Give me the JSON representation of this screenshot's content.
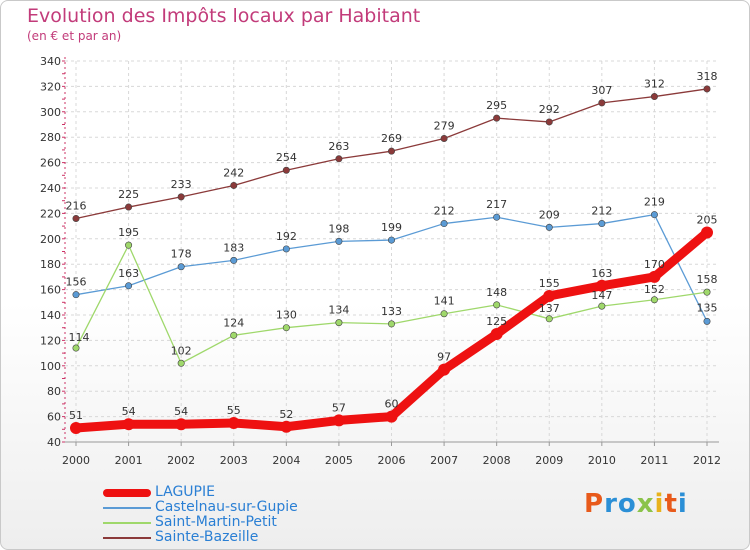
{
  "header": {
    "title": "Evolution des Impôts locaux par Habitant",
    "subtitle": "(en € et par an)"
  },
  "logo": {
    "text": "Proxiti",
    "colors": [
      "#e85a1b",
      "#2b8fd6",
      "#2b8fd6",
      "#8bc34a",
      "#e8b21b",
      "#e85a1b",
      "#2b8fd6"
    ]
  },
  "chart_data": {
    "type": "line",
    "title": "Evolution des Impôts locaux par Habitant",
    "subtitle": "(en € et par an)",
    "xlabel": "",
    "ylabel": "",
    "categories": [
      "2000",
      "2001",
      "2002",
      "2003",
      "2004",
      "2005",
      "2006",
      "2007",
      "2008",
      "2009",
      "2010",
      "2011",
      "2012"
    ],
    "ylim": [
      40,
      340
    ],
    "yticks": [
      40,
      60,
      80,
      100,
      120,
      140,
      160,
      180,
      200,
      220,
      240,
      260,
      280,
      300,
      320,
      340
    ],
    "grid": true,
    "legend_position": "bottom-left",
    "series": [
      {
        "name": "LAGUPIE",
        "color": "#ee1111",
        "bold": true,
        "values": [
          51,
          54,
          54,
          55,
          52,
          57,
          60,
          97,
          125,
          155,
          163,
          170,
          205
        ]
      },
      {
        "name": "Castelnau-sur-Gupie",
        "color": "#5b9bd5",
        "bold": false,
        "values": [
          156,
          163,
          178,
          183,
          192,
          198,
          199,
          212,
          217,
          209,
          212,
          219,
          135
        ]
      },
      {
        "name": "Saint-Martin-Petit",
        "color": "#9fd86b",
        "bold": false,
        "values": [
          114,
          195,
          102,
          124,
          130,
          134,
          133,
          141,
          148,
          137,
          147,
          152,
          158
        ]
      },
      {
        "name": "Sainte-Bazeille",
        "color": "#8b3a3a",
        "bold": false,
        "values": [
          216,
          225,
          233,
          242,
          254,
          263,
          269,
          279,
          295,
          292,
          307,
          312,
          318
        ]
      }
    ]
  }
}
